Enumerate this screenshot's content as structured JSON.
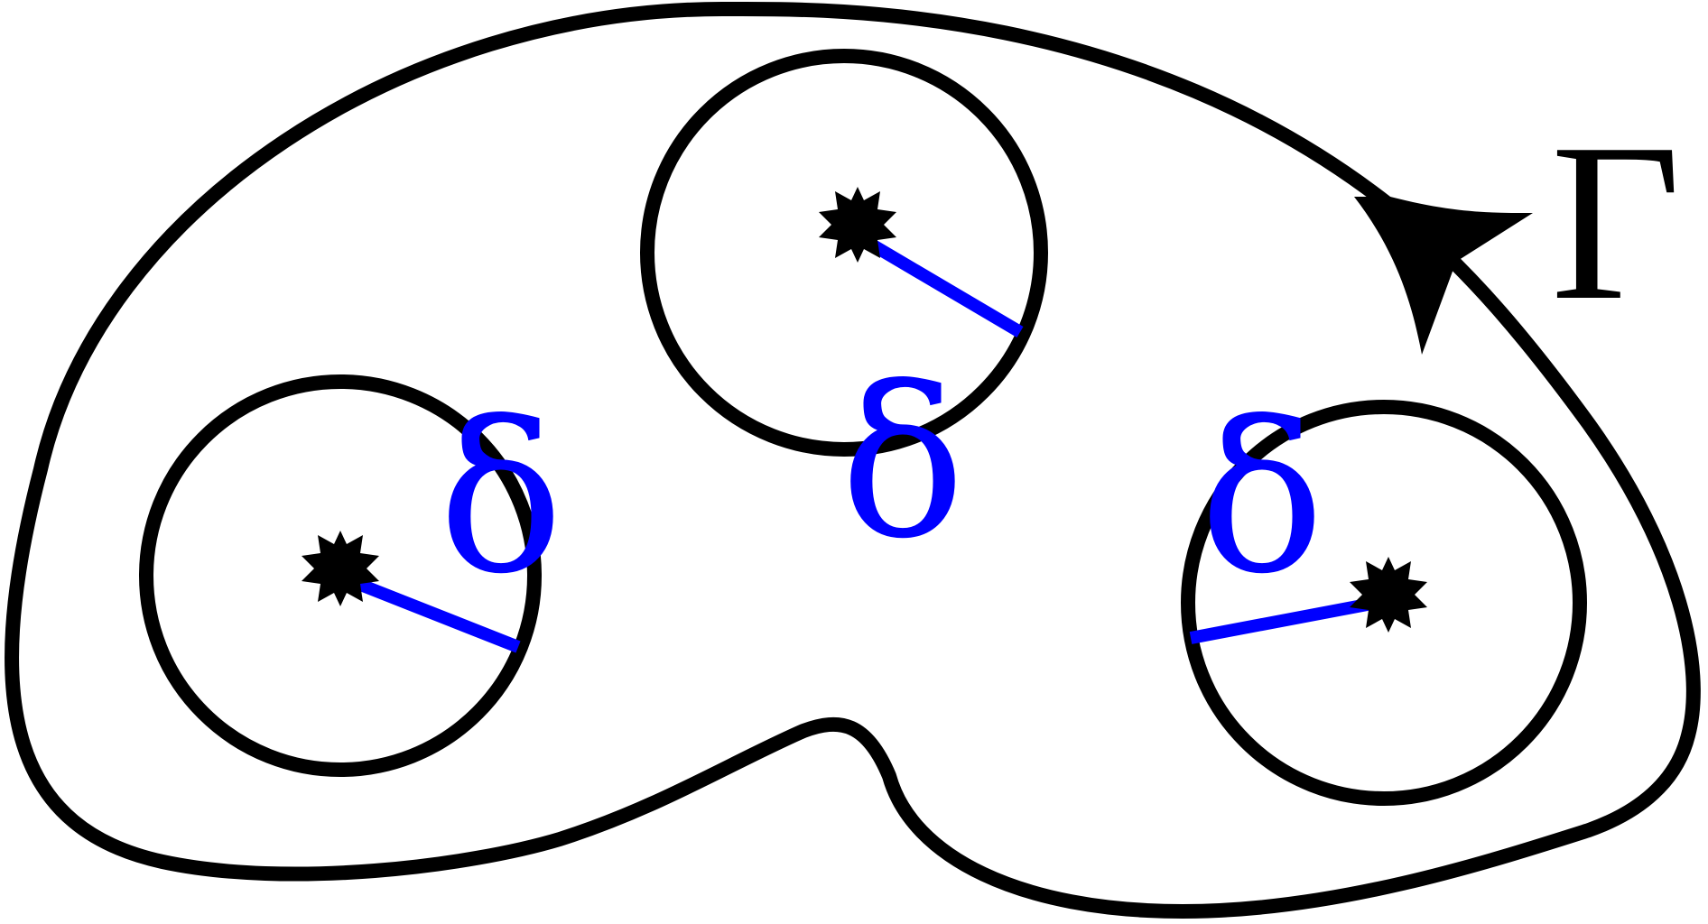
{
  "labels": {
    "contour": "Γ",
    "radius": "δ"
  },
  "colors": {
    "contour": "#000000",
    "radius": "#0000ff",
    "singularity": "#000000",
    "background": "#ffffff"
  }
}
